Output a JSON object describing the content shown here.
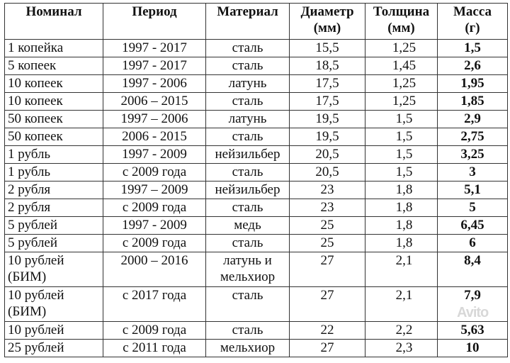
{
  "headers": [
    [
      "Номинал",
      ""
    ],
    [
      "Период",
      ""
    ],
    [
      "Материал",
      ""
    ],
    [
      "Диаметр",
      "(мм)"
    ],
    [
      "Толщина",
      "(мм)"
    ],
    [
      "Масса",
      "(г)"
    ]
  ],
  "rows": [
    [
      "1 копейка",
      "1997 - 2017",
      "сталь",
      "15,5",
      "1,25",
      "1,5"
    ],
    [
      "5 копеек",
      "1997 - 2017",
      "сталь",
      "18,5",
      "1,45",
      "2,6"
    ],
    [
      "10 копеек",
      "1997 - 2006",
      "латунь",
      "17,5",
      "1,25",
      "1,95"
    ],
    [
      "10 копеек",
      "2006 – 2015",
      "сталь",
      "17,5",
      "1,25",
      "1,85"
    ],
    [
      "50 копеек",
      "1997 – 2006",
      "латунь",
      "19,5",
      "1,5",
      "2,9"
    ],
    [
      "50 копеек",
      "2006 - 2015",
      "сталь",
      "19,5",
      "1,5",
      "2,75"
    ],
    [
      "1 рубль",
      "1997 - 2009",
      "нейзильбер",
      "20,5",
      "1,5",
      "3,25"
    ],
    [
      "1 рубль",
      "с 2009 года",
      "сталь",
      "20,5",
      "1,5",
      "3"
    ],
    [
      "2 рубля",
      "1997 – 2009",
      "нейзильбер",
      "23",
      "1,8",
      "5,1"
    ],
    [
      "2 рубля",
      "с 2009 года",
      "сталь",
      "23",
      "1,8",
      "5"
    ],
    [
      "5 рублей",
      "1997 - 2009",
      "медь",
      "25",
      "1,8",
      "6,45"
    ],
    [
      "5 рублей",
      "с 2009 года",
      "сталь",
      "25",
      "1,8",
      "6"
    ],
    [
      "10 рублей (БИМ)",
      "2000 – 2016",
      "латунь и мельхиор",
      "27",
      "2,1",
      "8,4"
    ],
    [
      "10 рублей (БИМ)",
      "с 2017 года",
      "сталь",
      "27",
      "2,1",
      "7,9"
    ],
    [
      "10 рублей",
      "с 2009 года",
      "сталь",
      "22",
      "2,2",
      "5,63"
    ],
    [
      "25 рублей",
      "с 2011 года",
      "мельхиор",
      "27",
      "2,3",
      "10"
    ]
  ],
  "watermark": "Avito"
}
